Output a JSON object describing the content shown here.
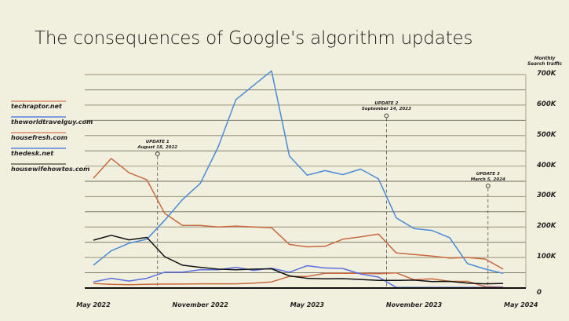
{
  "title": "The consequences of Google's algorithm updates",
  "chart_data": {
    "type": "line",
    "title": "The consequences of Google's algorithm updates",
    "ylabel": "Monthly Search traffic",
    "xlabel": "",
    "ylim": [
      0,
      700000
    ],
    "yticks": [
      0,
      100000,
      200000,
      300000,
      400000,
      500000,
      600000,
      700000
    ],
    "ytick_labels": [
      "0",
      "100K",
      "200K",
      "300K",
      "400K",
      "500K",
      "600K",
      "700K"
    ],
    "minor_grid_step": 50000,
    "grid": true,
    "legend_position": "left",
    "x": [
      "May 2022",
      "Jun 2022",
      "Jul 2022",
      "Aug 2022",
      "Sep 2022",
      "Oct 2022",
      "Nov 2022",
      "Dec 2022",
      "Jan 2023",
      "Feb 2023",
      "Mar 2023",
      "Apr 2023",
      "May 2023",
      "Jun 2023",
      "Jul 2023",
      "Aug 2023",
      "Sep 2023",
      "Oct 2023",
      "Nov 2023",
      "Dec 2023",
      "Jan 2024",
      "Feb 2024",
      "Mar 2024",
      "Apr 2024",
      "May 2024"
    ],
    "xtick_labels": [
      {
        "label": "May 2022",
        "index": 0
      },
      {
        "label": "November 2022",
        "index": 6
      },
      {
        "label": "May 2023",
        "index": 12
      },
      {
        "label": "November 2023",
        "index": 18
      },
      {
        "label": "May 2024",
        "index": 24
      }
    ],
    "series": [
      {
        "name": "techraptor.net",
        "color": "#c8693f",
        "values": [
          360000,
          425000,
          378000,
          355000,
          245000,
          205000,
          205000,
          200000,
          203000,
          200000,
          198000,
          143000,
          135000,
          137000,
          160000,
          168000,
          177000,
          115000,
          110000,
          105000,
          98000,
          100000,
          95000,
          62000,
          null
        ]
      },
      {
        "name": "theworldtravelguy.com",
        "color": "#4a8ad8",
        "values": [
          75000,
          122000,
          147000,
          160000,
          222000,
          290000,
          343000,
          462000,
          618000,
          665000,
          712000,
          433000,
          370000,
          385000,
          372000,
          390000,
          358000,
          230000,
          195000,
          189000,
          165000,
          80000,
          62000,
          48000,
          null
        ]
      },
      {
        "name": "housefresh.com",
        "color": "#c8693f",
        "values": [
          15000,
          12000,
          11000,
          12000,
          13000,
          13000,
          14000,
          14000,
          14000,
          16000,
          20000,
          38000,
          38000,
          48000,
          48000,
          48000,
          47000,
          50000,
          27000,
          30000,
          22000,
          22000,
          5000,
          3000,
          null
        ]
      },
      {
        "name": "thedesk.net",
        "color": "#5b6fe0",
        "values": [
          20000,
          32000,
          23000,
          32000,
          52000,
          52000,
          60000,
          60000,
          68000,
          58000,
          65000,
          52000,
          73000,
          66000,
          64000,
          46000,
          36000,
          2000,
          2000,
          2000,
          2000,
          2000,
          2000,
          2000,
          null
        ]
      },
      {
        "name": "housewifehowtos.com",
        "color": "#111111",
        "values": [
          157000,
          173000,
          158000,
          166000,
          103000,
          75000,
          68000,
          62000,
          60000,
          62000,
          63000,
          40000,
          32000,
          30000,
          31000,
          28000,
          25000,
          25000,
          26000,
          21000,
          22000,
          16000,
          14000,
          15000,
          null
        ]
      }
    ],
    "annotations": [
      {
        "label": "UPDATE 1",
        "date": "August 18, 2022",
        "x_index": 3.6
      },
      {
        "label": "UPDATE 2",
        "date": "September 14, 2023",
        "x_index": 16.45
      },
      {
        "label": "UPDATE 3",
        "date": "March 5, 2024",
        "x_index": 22.15
      }
    ]
  }
}
